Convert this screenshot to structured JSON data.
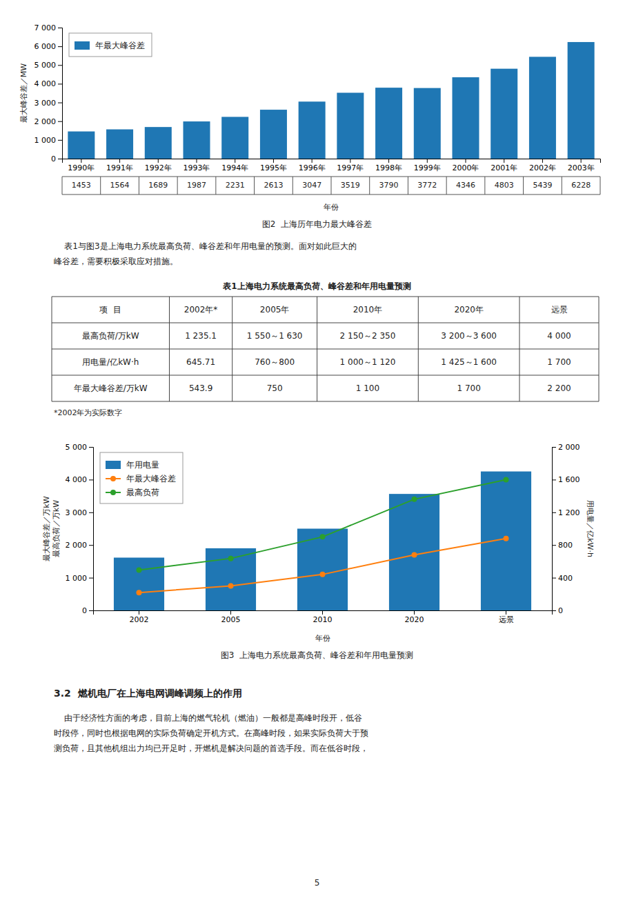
{
  "chart_data": [
    {
      "type": "bar",
      "title": "图2  上海历年电力最大峰谷差",
      "x_label": "年份",
      "y_label": "最大峰谷差／MW",
      "categories": [
        "1990年",
        "1991年",
        "1992年",
        "1993年",
        "1994年",
        "1995年",
        "1996年",
        "1997年",
        "1998年",
        "1999年",
        "2000年",
        "2001年",
        "2002年",
        "2003年"
      ],
      "series": [
        {
          "name": "年最大峰谷差",
          "values": [
            1453,
            1564,
            1689,
            1987,
            2231,
            2613,
            3047,
            3519,
            3790,
            3772,
            4346,
            4803,
            5439,
            6228
          ]
        }
      ],
      "ylim": [
        0,
        7000
      ],
      "yticks": [
        0,
        {
          "value": 1000,
          "label": "1 000"
        },
        {
          "value": 2000,
          "label": "2 000"
        },
        {
          "value": 3000,
          "label": "3 000"
        },
        {
          "value": 4000,
          "label": "4 000"
        },
        {
          "value": 5000,
          "label": "5 000"
        },
        {
          "value": 6000,
          "label": "6 000"
        },
        {
          "value": 7000,
          "label": "7 000"
        }
      ],
      "legend": "upper left",
      "data_labels": true
    },
    {
      "type": "bar",
      "title": "图3  上海电力系统最高负荷、峰谷差和年用电量预测",
      "x_label": "年份",
      "y_label": "最大峰谷差／万kW\n最高负荷／万kW",
      "y2_label": "用电量／亿kW·h",
      "categories": [
        "2002",
        "2005",
        "2010",
        "2020",
        "远景"
      ],
      "series": [
        {
          "name": "年用电量",
          "type": "bar",
          "axis": "y2",
          "values": [
            645.71,
            760,
            1000,
            1425,
            1700
          ]
        },
        {
          "name": "年最大峰谷差",
          "type": "line",
          "marker": "circle",
          "values": [
            543.9,
            750,
            1100,
            1700,
            2200
          ]
        },
        {
          "name": "最高负荷",
          "type": "line",
          "marker": "circle",
          "values": [
            1235.1,
            1590,
            2250,
            3400,
            4000
          ]
        }
      ],
      "ylim": [
        0,
        5000
      ],
      "yticks": [
        0,
        {
          "value": 1000,
          "label": "1 000"
        },
        {
          "value": 2000,
          "label": "2 000"
        },
        {
          "value": 3000,
          "label": "3 000"
        },
        {
          "value": 4000,
          "label": "4 000"
        },
        {
          "value": 5000,
          "label": "5 000"
        }
      ],
      "y2lim": [
        0,
        2000
      ],
      "y2ticks": [
        0,
        400,
        800,
        {
          "value": 1200,
          "label": "1 200"
        },
        {
          "value": 1600,
          "label": "1 600"
        },
        {
          "value": 2000,
          "label": "2 000"
        }
      ],
      "legend": "upper left"
    }
  ],
  "text": {
    "paragraph": [
      "    表1与图3是上海电力系统最高负荷、峰谷差和年用电量的预测。面对如此巨大的",
      "峰谷差，需要积极采取应对措施。"
    ],
    "section_title": "3.2  燃机电厂在上海电网调峰调频上的作用",
    "body": [
      "    由于经济性方面的考虑，目前上海的燃气轮机（燃油）一般都是高峰时段开，低谷",
      "时段停，同时也根据电网的实际负荷确定开机方式。在高峰时段，如果实际负荷大于预",
      "测负荷，且其他机组出力均已开足时，开燃机是解决问题的首选手段。而在低谷时段，"
    ],
    "page_number": "5"
  },
  "table": {
    "title": "表1上海电力系统最高负荷、峰谷差和年用电量预测",
    "headers": [
      "项  目",
      "2002年*",
      "2005年",
      "2010年",
      "2020年",
      "远景"
    ],
    "rows": [
      [
        "最高负荷/万kW",
        "1 235.1",
        "1 550～1 630",
        "2 150～2 350",
        "3 200～3 600",
        "4 000"
      ],
      [
        "用电量/亿kW·h",
        "645.71",
        "760～800",
        "1 000～1 120",
        "1 425～1 600",
        "1 700"
      ],
      [
        "年最大峰谷差/万kW",
        "543.9",
        "750",
        "1 100",
        "1 700",
        "2 200"
      ]
    ],
    "note": "*2002年为实际数字"
  }
}
